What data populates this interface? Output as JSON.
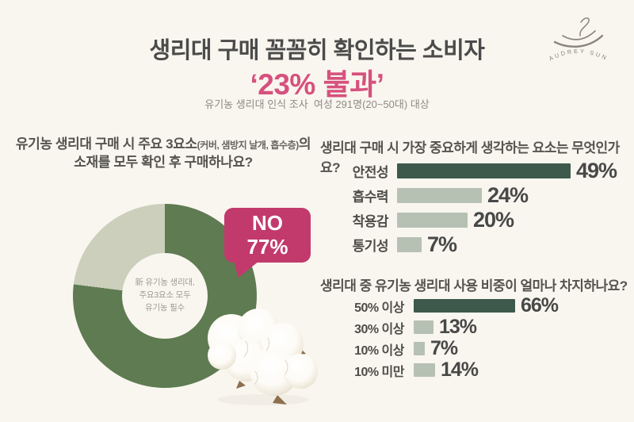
{
  "colors": {
    "background": "#f9f6ef",
    "title_text": "#4b4b4b",
    "accent_pink": "#d6517e",
    "bubble_pink": "#c23a6c",
    "bar_dark": "#3d594b",
    "bar_light": "#b6c0b3",
    "donut_main": "#5e7b51",
    "donut_rest": "#cbcfbb"
  },
  "header": {
    "title": "생리대 구매 꼼꼼히 확인하는 소비자",
    "subtitle": "‘23% 불과’",
    "caption": "유기농 생리대 인식 조사  여성 291명(20~50대) 대상",
    "brand": "AUDREY SUN"
  },
  "left": {
    "question_main": "유기농 생리대 구매 시 주요 3요소",
    "question_paren": "(커버, 샘방지 날개, 흡수층)",
    "question_suffix": "의",
    "question_line2": "소재를 모두 확인 후 구매하나요?",
    "bubble_label": "NO",
    "bubble_value": "77%",
    "donut_center_lines": [
      "新 유기농 생리대,",
      "주요3요소 모두",
      "유기농 필수"
    ]
  },
  "right": {
    "question1": "생리대 구매 시 가장 중요하게 생각하는 요소는 무엇인가요?",
    "question2": "생리대 중 유기농 생리대 사용 비중이 얼마나 차지하나요?"
  },
  "chart_data": [
    {
      "id": "check-all-three",
      "type": "pie",
      "style": "donut",
      "title": "유기농 생리대 구매 시 주요 3요소(커버, 샘방지 날개, 흡수층)의 소재를 모두 확인 후 구매하나요?",
      "segments": [
        {
          "label": "NO",
          "value": 77,
          "color": "#5e7b51"
        },
        {
          "label": "",
          "value": 23,
          "color": "#cbcfbb"
        }
      ],
      "center_note": "新 유기농 생리대, 주요3요소 모두 유기농 필수",
      "callout": "NO 77%"
    },
    {
      "id": "importance",
      "type": "bar",
      "orientation": "horizontal",
      "title": "생리대 구매 시 가장 중요하게 생각하는 요소는 무엇인가요?",
      "categories": [
        "안전성",
        "흡수력",
        "착용감",
        "통기성"
      ],
      "values": [
        49,
        24,
        20,
        7
      ],
      "unit": "%",
      "emphasized_index": 0,
      "xlim": [
        0,
        49
      ]
    },
    {
      "id": "usage-share",
      "type": "bar",
      "orientation": "horizontal",
      "title": "생리대 중 유기농 생리대 사용 비중이 얼마나 차지하나요?",
      "categories": [
        "50% 이상",
        "30% 이상",
        "10% 이상",
        "10% 미만"
      ],
      "values": [
        66,
        13,
        7,
        14
      ],
      "unit": "%",
      "emphasized_index": 0,
      "xlim": [
        0,
        66
      ]
    }
  ]
}
